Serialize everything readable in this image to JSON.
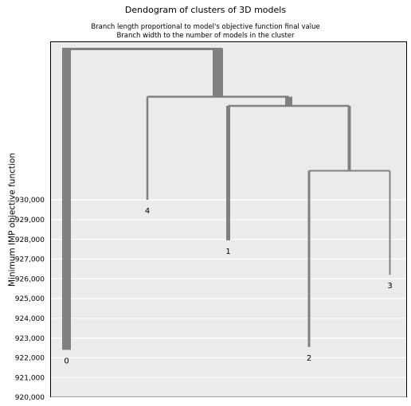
{
  "chart_data": {
    "type": "dendrogram",
    "title": "Dendogram of clusters of 3D models",
    "subtitle_lines": [
      "Branch length proportional to model's objective function final value",
      "Branch width to the number of models in the cluster"
    ],
    "ylabel": "Minimum IMP objective function",
    "ylim": [
      920000,
      930000
    ],
    "yticks": [
      920000,
      921000,
      922000,
      923000,
      924000,
      925000,
      926000,
      927000,
      928000,
      929000,
      930000
    ],
    "ytick_labels": [
      "920,000",
      "921,000",
      "922,000",
      "923,000",
      "924,000",
      "925,000",
      "926,000",
      "927,000",
      "928,000",
      "929,000",
      "930,000"
    ],
    "grid": true,
    "colors": {
      "background": "#ebebeb",
      "grid": "#ffffff",
      "branch": "#808080"
    },
    "leaves": [
      {
        "label": "0",
        "value": 922400
      },
      {
        "label": "4",
        "value": 930000
      },
      {
        "label": "1",
        "value": 927950
      },
      {
        "label": "2",
        "value": 922550
      },
      {
        "label": "3",
        "value": 926200
      }
    ]
  }
}
